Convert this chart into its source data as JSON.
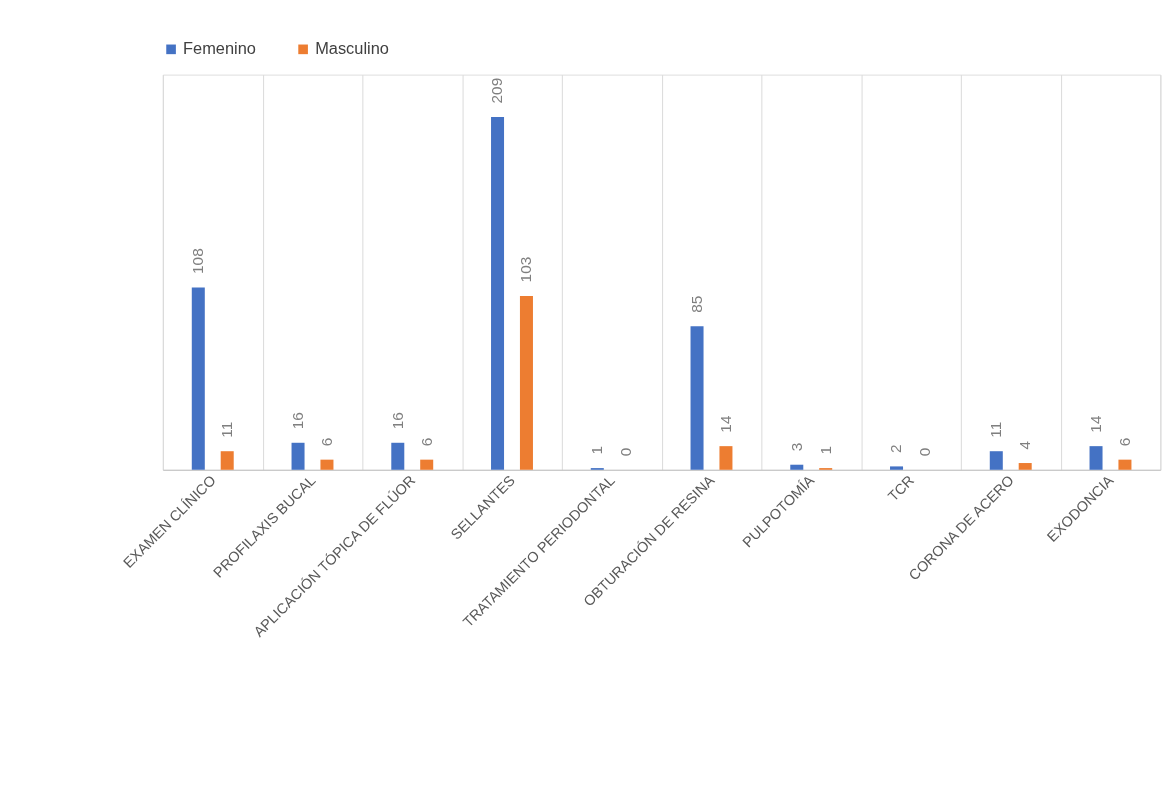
{
  "chart_data": {
    "type": "bar",
    "categories": [
      "EXAMEN CLÍNICO",
      "PROFILAXIS BUCAL",
      "APLICACIÓN TÓPICA DE FLÚOR",
      "SELLANTES",
      "TRATAMIENTO PERIODONTAL",
      "OBTURACIÓN DE RESINA",
      "PULPOTOMÍA",
      "TCR",
      "CORONA DE ACERO",
      "EXODONCIA"
    ],
    "series": [
      {
        "name": "Femenino",
        "color": "#4472c4",
        "values": [
          108,
          16,
          16,
          209,
          1,
          85,
          3,
          2,
          11,
          14
        ]
      },
      {
        "name": "Masculino",
        "color": "#ed7d31",
        "values": [
          11,
          6,
          6,
          103,
          0,
          14,
          1,
          0,
          4,
          6
        ]
      }
    ],
    "data_labels": true,
    "grid": "x",
    "legend": "top"
  }
}
